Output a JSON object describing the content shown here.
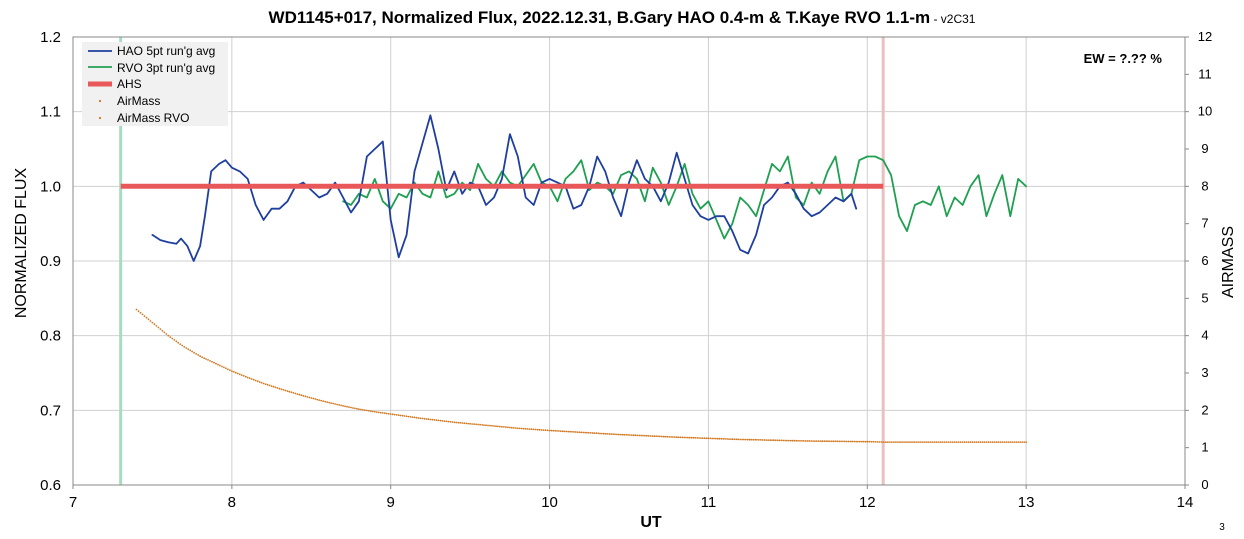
{
  "chart_data": {
    "type": "line",
    "title": "WD1145+017, Normalized Flux, 2022.12.31, B.Gary HAO 0.4-m & T.Kaye RVO 1.1-m",
    "title_version": " - v2C31",
    "xlabel": "UT",
    "ylabel": "NORMALIZED FLUX",
    "y2label": "AIRMASS",
    "xlim": [
      7,
      14
    ],
    "ylim": [
      0.6,
      1.2
    ],
    "y2lim": [
      0,
      12
    ],
    "xticks": [
      "7",
      "8",
      "9",
      "10",
      "11",
      "12",
      "13",
      "14"
    ],
    "yticks": [
      "0.6",
      "0.7",
      "0.8",
      "0.9",
      "1.0",
      "1.1",
      "1.2"
    ],
    "y2ticks": [
      "0",
      "1",
      "2",
      "3",
      "4",
      "5",
      "6",
      "7",
      "8",
      "9",
      "10",
      "11",
      "12"
    ],
    "grid": true,
    "legend_position": "top-left",
    "annotation": "EW = ?.?? %",
    "page_number": "3",
    "colors": {
      "hao": "#1f3f9f",
      "rvo": "#1fa050",
      "ahs": "#e85858",
      "airmass": "#d07820",
      "start_marker": "#a8dcc0",
      "end_marker": "#e8c0c0",
      "grid": "#d0d0d0"
    },
    "markers": [
      {
        "x": 7.3,
        "kind": "start"
      },
      {
        "x": 12.1,
        "kind": "end"
      }
    ],
    "series": [
      {
        "name": "HAO 5pt run'g avg",
        "kind": "line",
        "axis": "left",
        "x": [
          7.5,
          7.55,
          7.6,
          7.65,
          7.68,
          7.72,
          7.76,
          7.8,
          7.83,
          7.87,
          7.92,
          7.96,
          8.0,
          8.05,
          8.1,
          8.15,
          8.2,
          8.25,
          8.3,
          8.35,
          8.4,
          8.45,
          8.5,
          8.55,
          8.6,
          8.65,
          8.7,
          8.75,
          8.8,
          8.85,
          8.9,
          8.95,
          9.0,
          9.05,
          9.1,
          9.15,
          9.25,
          9.3,
          9.35,
          9.4,
          9.45,
          9.5,
          9.55,
          9.6,
          9.65,
          9.7,
          9.75,
          9.8,
          9.85,
          9.9,
          9.95,
          10.0,
          10.05,
          10.1,
          10.15,
          10.2,
          10.25,
          10.3,
          10.35,
          10.4,
          10.45,
          10.5,
          10.55,
          10.6,
          10.65,
          10.7,
          10.75,
          10.8,
          10.85,
          10.9,
          10.95,
          11.0,
          11.05,
          11.1,
          11.15,
          11.2,
          11.25,
          11.3,
          11.35,
          11.4,
          11.45,
          11.5,
          11.55,
          11.6,
          11.65,
          11.7,
          11.75,
          11.8,
          11.85,
          11.9,
          11.93
        ],
        "y": [
          0.935,
          0.928,
          0.925,
          0.923,
          0.93,
          0.92,
          0.9,
          0.92,
          0.96,
          1.02,
          1.03,
          1.035,
          1.025,
          1.02,
          1.01,
          0.975,
          0.955,
          0.97,
          0.97,
          0.98,
          1.0,
          1.005,
          0.995,
          0.985,
          0.99,
          1.005,
          0.985,
          0.965,
          0.98,
          1.04,
          1.05,
          1.06,
          0.955,
          0.905,
          0.935,
          1.02,
          1.095,
          1.05,
          0.995,
          1.02,
          0.99,
          1.005,
          1.0,
          0.975,
          0.985,
          1.01,
          1.07,
          1.04,
          0.985,
          0.975,
          1.005,
          1.01,
          1.005,
          1.0,
          0.97,
          0.975,
          1.0,
          1.04,
          1.02,
          0.985,
          0.96,
          1.005,
          1.035,
          1.01,
          1.0,
          0.98,
          1.005,
          1.045,
          1.01,
          0.975,
          0.96,
          0.955,
          0.96,
          0.96,
          0.94,
          0.915,
          0.91,
          0.935,
          0.975,
          0.985,
          1.0,
          1.005,
          0.99,
          0.97,
          0.96,
          0.965,
          0.975,
          0.985,
          0.98,
          0.99,
          0.97
        ]
      },
      {
        "name": "RVO 3pt run'g avg",
        "kind": "line",
        "axis": "left",
        "x": [
          8.7,
          8.75,
          8.8,
          8.85,
          8.9,
          8.95,
          9.0,
          9.05,
          9.1,
          9.15,
          9.2,
          9.25,
          9.3,
          9.35,
          9.4,
          9.45,
          9.5,
          9.55,
          9.6,
          9.65,
          9.7,
          9.75,
          9.8,
          9.85,
          9.9,
          9.95,
          10.0,
          10.05,
          10.1,
          10.15,
          10.2,
          10.25,
          10.3,
          10.35,
          10.4,
          10.45,
          10.5,
          10.55,
          10.6,
          10.65,
          10.7,
          10.75,
          10.8,
          10.85,
          10.9,
          10.95,
          11.0,
          11.05,
          11.1,
          11.15,
          11.2,
          11.25,
          11.3,
          11.35,
          11.4,
          11.45,
          11.5,
          11.55,
          11.6,
          11.65,
          11.7,
          11.75,
          11.8,
          11.85,
          11.9,
          11.95,
          12.0,
          12.05,
          12.1,
          12.15,
          12.2,
          12.25,
          12.3,
          12.35,
          12.4,
          12.45,
          12.5,
          12.55,
          12.6,
          12.65,
          12.7,
          12.75,
          12.8,
          12.85,
          12.9,
          12.95,
          13.0
        ],
        "y": [
          0.98,
          0.975,
          0.99,
          0.985,
          1.01,
          0.98,
          0.97,
          0.99,
          0.985,
          1.005,
          0.99,
          0.985,
          1.02,
          0.985,
          0.99,
          1.005,
          0.995,
          1.03,
          1.01,
          1.0,
          1.02,
          1.005,
          1.0,
          1.015,
          1.03,
          1.005,
          1.0,
          0.98,
          1.01,
          1.02,
          1.035,
          0.995,
          1.005,
          1.0,
          0.99,
          1.015,
          1.02,
          1.01,
          0.98,
          1.025,
          1.005,
          0.975,
          1.0,
          1.03,
          0.99,
          0.97,
          0.98,
          0.955,
          0.93,
          0.95,
          0.985,
          0.975,
          0.96,
          0.995,
          1.03,
          1.02,
          1.04,
          0.985,
          0.975,
          1.005,
          0.99,
          1.02,
          1.04,
          0.98,
          0.99,
          1.035,
          1.04,
          1.04,
          1.035,
          1.015,
          0.96,
          0.94,
          0.975,
          0.98,
          0.975,
          1.0,
          0.96,
          0.985,
          0.975,
          1.0,
          1.015,
          0.96,
          0.99,
          1.015,
          0.96,
          1.01,
          1.0
        ]
      },
      {
        "name": "AHS",
        "kind": "thick-line",
        "axis": "left",
        "x": [
          7.3,
          12.1
        ],
        "y": [
          1.0,
          1.0
        ]
      },
      {
        "name": "AirMass",
        "kind": "dots",
        "axis": "right",
        "x": [
          7.4,
          7.5,
          7.6,
          7.7,
          7.8,
          7.9,
          8.0,
          8.1,
          8.2,
          8.3,
          8.4,
          8.5,
          8.6,
          8.7,
          8.8,
          8.9,
          9.0,
          9.1,
          9.2,
          9.3,
          9.4,
          9.5,
          9.6,
          9.7,
          9.8,
          9.9,
          10.0,
          10.2,
          10.4,
          10.6,
          10.8,
          11.0,
          11.2,
          11.4,
          11.6,
          11.8,
          12.0
        ],
        "y": [
          4.7,
          4.35,
          4.0,
          3.7,
          3.45,
          3.25,
          3.05,
          2.88,
          2.72,
          2.58,
          2.45,
          2.33,
          2.22,
          2.12,
          2.03,
          1.96,
          1.9,
          1.84,
          1.78,
          1.73,
          1.68,
          1.64,
          1.6,
          1.56,
          1.52,
          1.49,
          1.46,
          1.41,
          1.36,
          1.32,
          1.28,
          1.25,
          1.22,
          1.2,
          1.18,
          1.17,
          1.16
        ]
      },
      {
        "name": "AirMass RVO",
        "kind": "dots",
        "axis": "right",
        "x": [
          12.0,
          12.1,
          12.2,
          12.3,
          12.4,
          12.5,
          12.6,
          12.7,
          12.8,
          12.9,
          13.0
        ],
        "y": [
          1.16,
          1.15,
          1.15,
          1.15,
          1.15,
          1.15,
          1.15,
          1.15,
          1.15,
          1.15,
          1.15
        ]
      }
    ]
  }
}
